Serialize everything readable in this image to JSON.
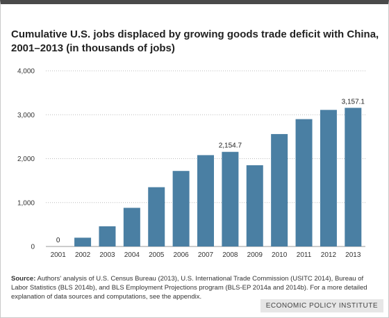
{
  "chart_data": {
    "type": "bar",
    "title": "Cumulative U.S. jobs displaced by growing goods trade deficit with China, 2001–2013 (in thousands of jobs)",
    "categories": [
      "2001",
      "2002",
      "2003",
      "2004",
      "2005",
      "2006",
      "2007",
      "2008",
      "2009",
      "2010",
      "2011",
      "2012",
      "2013"
    ],
    "values": [
      0,
      200,
      460,
      880,
      1350,
      1720,
      2080,
      2154.7,
      1850,
      2560,
      2900,
      3110,
      3157.1
    ],
    "data_labels": {
      "0": "0",
      "7": "2,154.7",
      "12": "3,157.1"
    },
    "ylim": [
      0,
      4000
    ],
    "yticks": [
      0,
      1000,
      2000,
      3000,
      4000
    ],
    "ytick_labels": [
      "0",
      "1,000",
      "2,000",
      "3,000",
      "4,000"
    ],
    "bar_color": "#4a7fa3",
    "grid": true
  },
  "source": {
    "label": "Source:",
    "text": "Authors' analysis of U.S. Census Bureau (2013), U.S. International Trade Commission (USITC 2014), Bureau of Labor Statistics (BLS 2014b), and BLS Employment Projections program (BLS-EP 2014a and 2014b). For a more detailed explanation of data sources and computations, see the appendix."
  },
  "organization": "ECONOMIC POLICY INSTITUTE"
}
